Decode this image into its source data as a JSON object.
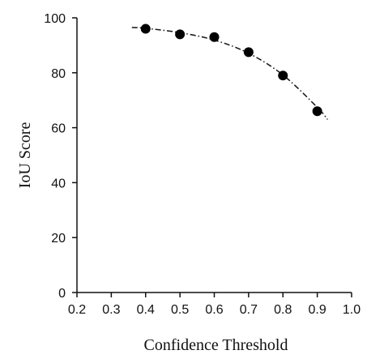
{
  "chart_data": {
    "type": "scatter",
    "title": "",
    "xlabel": "Confidence Threshold",
    "ylabel": "IoU Score",
    "xlim": [
      0.2,
      1.0
    ],
    "ylim": [
      0,
      100
    ],
    "x_ticks": [
      "0.2",
      "0.3",
      "0.4",
      "0.5",
      "0.6",
      "0.7",
      "0.8",
      "0.9",
      "1.0"
    ],
    "y_ticks": [
      "0",
      "20",
      "40",
      "60",
      "80",
      "100"
    ],
    "grid": false,
    "legend": "none",
    "series": [
      {
        "x": [
          0.4,
          0.5,
          0.6,
          0.7,
          0.8,
          0.9
        ],
        "y": [
          96,
          94,
          93,
          87.5,
          79,
          66
        ],
        "marker": "filled-circle",
        "color": "#000000"
      }
    ],
    "trendline": {
      "style": "dash-dot",
      "color": "#000000",
      "x": [
        0.36,
        0.4,
        0.5,
        0.6,
        0.7,
        0.8,
        0.9,
        0.93
      ],
      "y": [
        96.5,
        96.2,
        94.6,
        91.9,
        87.1,
        79.2,
        67.4,
        63
      ]
    }
  }
}
